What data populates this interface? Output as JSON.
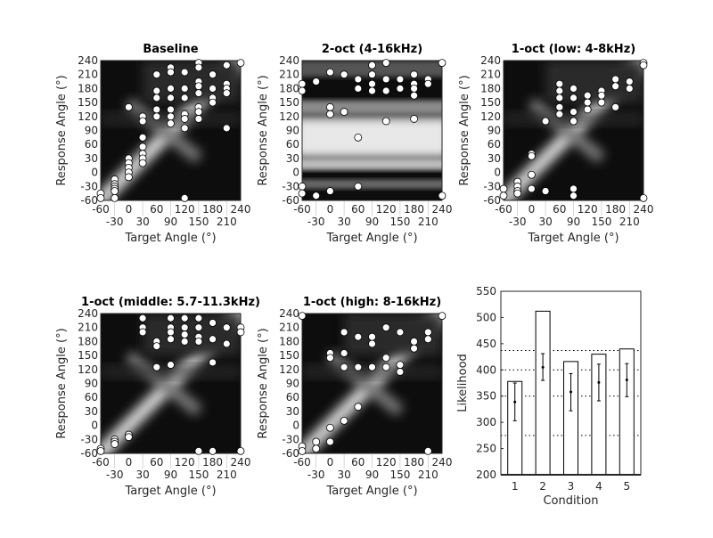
{
  "chart_data": [
    {
      "type": "heatmap",
      "title": "Baseline",
      "xlabel": "Target Angle (°)",
      "ylabel": "Response Angle (°)",
      "xlim": [
        -60,
        240
      ],
      "ylim": [
        -60,
        240
      ],
      "xticks": [
        "-60",
        "-30",
        "0",
        "30",
        "60",
        "90",
        "120",
        "150",
        "180",
        "210",
        "240"
      ],
      "yticks": [
        "-60",
        "-30",
        "0",
        "30",
        "60",
        "90",
        "120",
        "150",
        "180",
        "210",
        "240"
      ],
      "pattern": "diagonal",
      "points": [
        [
          -60,
          -45
        ],
        [
          -60,
          -55
        ],
        [
          -30,
          -15
        ],
        [
          -30,
          -25
        ],
        [
          -30,
          -30
        ],
        [
          -30,
          -35
        ],
        [
          -30,
          -40
        ],
        [
          -30,
          -55
        ],
        [
          0,
          140
        ],
        [
          0,
          30
        ],
        [
          0,
          20
        ],
        [
          0,
          10
        ],
        [
          0,
          0
        ],
        [
          0,
          -10
        ],
        [
          30,
          120
        ],
        [
          30,
          110
        ],
        [
          30,
          75
        ],
        [
          30,
          55
        ],
        [
          30,
          40
        ],
        [
          30,
          30
        ],
        [
          30,
          20
        ],
        [
          60,
          210
        ],
        [
          60,
          175
        ],
        [
          60,
          160
        ],
        [
          60,
          135
        ],
        [
          60,
          120
        ],
        [
          90,
          225
        ],
        [
          90,
          215
        ],
        [
          90,
          180
        ],
        [
          90,
          160
        ],
        [
          90,
          135
        ],
        [
          90,
          120
        ],
        [
          90,
          105
        ],
        [
          120,
          215
        ],
        [
          120,
          180
        ],
        [
          120,
          160
        ],
        [
          120,
          125
        ],
        [
          120,
          115
        ],
        [
          120,
          95
        ],
        [
          120,
          -55
        ],
        [
          150,
          235
        ],
        [
          150,
          225
        ],
        [
          150,
          195
        ],
        [
          150,
          185
        ],
        [
          150,
          170
        ],
        [
          150,
          140
        ],
        [
          150,
          130
        ],
        [
          150,
          115
        ],
        [
          180,
          210
        ],
        [
          180,
          180
        ],
        [
          180,
          160
        ],
        [
          180,
          150
        ],
        [
          210,
          230
        ],
        [
          210,
          190
        ],
        [
          210,
          180
        ],
        [
          210,
          170
        ],
        [
          210,
          95
        ],
        [
          240,
          235
        ]
      ]
    },
    {
      "type": "heatmap",
      "title": "2-oct (4-16kHz)",
      "xlabel": "Target Angle (°)",
      "ylabel": "Response Angle (°)",
      "xlim": [
        -60,
        240
      ],
      "ylim": [
        -60,
        240
      ],
      "xticks": [
        "-60",
        "-30",
        "0",
        "30",
        "60",
        "90",
        "120",
        "150",
        "180",
        "210",
        "240"
      ],
      "yticks": [
        "-60",
        "-30",
        "0",
        "30",
        "60",
        "90",
        "120",
        "150",
        "180",
        "210",
        "240"
      ],
      "pattern": "bands",
      "points": [
        [
          -60,
          190
        ],
        [
          -60,
          175
        ],
        [
          -60,
          -30
        ],
        [
          -60,
          -45
        ],
        [
          -30,
          195
        ],
        [
          -30,
          -50
        ],
        [
          0,
          215
        ],
        [
          0,
          140
        ],
        [
          0,
          125
        ],
        [
          0,
          -40
        ],
        [
          30,
          210
        ],
        [
          30,
          130
        ],
        [
          60,
          200
        ],
        [
          60,
          180
        ],
        [
          60,
          75
        ],
        [
          60,
          -30
        ],
        [
          90,
          230
        ],
        [
          90,
          210
        ],
        [
          90,
          190
        ],
        [
          90,
          175
        ],
        [
          120,
          235
        ],
        [
          120,
          200
        ],
        [
          120,
          175
        ],
        [
          120,
          110
        ],
        [
          150,
          200
        ],
        [
          150,
          180
        ],
        [
          180,
          210
        ],
        [
          180,
          190
        ],
        [
          180,
          180
        ],
        [
          180,
          165
        ],
        [
          180,
          115
        ],
        [
          210,
          200
        ],
        [
          210,
          190
        ],
        [
          240,
          235
        ],
        [
          240,
          -50
        ]
      ]
    },
    {
      "type": "heatmap",
      "title": "1-oct (low: 4-8kHz)",
      "xlabel": "Target Angle (°)",
      "ylabel": "Response Angle (°)",
      "xlim": [
        -60,
        240
      ],
      "ylim": [
        -60,
        240
      ],
      "xticks": [
        "-60",
        "-30",
        "0",
        "30",
        "60",
        "90",
        "120",
        "150",
        "180",
        "210",
        "240"
      ],
      "yticks": [
        "-60",
        "-30",
        "0",
        "30",
        "60",
        "90",
        "120",
        "150",
        "180",
        "210",
        "240"
      ],
      "pattern": "diagonal",
      "points": [
        [
          -60,
          -35
        ],
        [
          -60,
          -50
        ],
        [
          -30,
          -20
        ],
        [
          -30,
          -30
        ],
        [
          -30,
          -40
        ],
        [
          -30,
          -45
        ],
        [
          0,
          40
        ],
        [
          0,
          35
        ],
        [
          0,
          -5
        ],
        [
          0,
          -35
        ],
        [
          30,
          110
        ],
        [
          30,
          -40
        ],
        [
          60,
          190
        ],
        [
          60,
          175
        ],
        [
          60,
          160
        ],
        [
          60,
          140
        ],
        [
          60,
          125
        ],
        [
          90,
          180
        ],
        [
          90,
          160
        ],
        [
          90,
          130
        ],
        [
          90,
          110
        ],
        [
          90,
          -35
        ],
        [
          90,
          -50
        ],
        [
          120,
          165
        ],
        [
          120,
          150
        ],
        [
          120,
          135
        ],
        [
          150,
          175
        ],
        [
          150,
          165
        ],
        [
          150,
          150
        ],
        [
          180,
          200
        ],
        [
          180,
          185
        ],
        [
          180,
          140
        ],
        [
          210,
          195
        ],
        [
          210,
          180
        ],
        [
          240,
          235
        ],
        [
          240,
          230
        ],
        [
          240,
          -55
        ]
      ]
    },
    {
      "type": "heatmap",
      "title": "1-oct (middle: 5.7-11.3kHz)",
      "xlabel": "Target Angle (°)",
      "ylabel": "Response Angle (°)",
      "xlim": [
        -60,
        240
      ],
      "ylim": [
        -60,
        240
      ],
      "xticks": [
        "-60",
        "-30",
        "0",
        "30",
        "60",
        "90",
        "120",
        "150",
        "180",
        "210",
        "240"
      ],
      "yticks": [
        "-60",
        "-30",
        "0",
        "30",
        "60",
        "90",
        "120",
        "150",
        "180",
        "210",
        "240"
      ],
      "pattern": "diagonal",
      "points": [
        [
          -60,
          -50
        ],
        [
          -60,
          -55
        ],
        [
          -30,
          -30
        ],
        [
          -30,
          -35
        ],
        [
          -30,
          -40
        ],
        [
          0,
          -20
        ],
        [
          0,
          -25
        ],
        [
          30,
          230
        ],
        [
          30,
          210
        ],
        [
          30,
          200
        ],
        [
          60,
          180
        ],
        [
          60,
          170
        ],
        [
          60,
          125
        ],
        [
          90,
          230
        ],
        [
          90,
          210
        ],
        [
          90,
          200
        ],
        [
          90,
          185
        ],
        [
          90,
          130
        ],
        [
          120,
          230
        ],
        [
          120,
          210
        ],
        [
          120,
          195
        ],
        [
          120,
          180
        ],
        [
          150,
          230
        ],
        [
          150,
          210
        ],
        [
          150,
          190
        ],
        [
          150,
          180
        ],
        [
          180,
          220
        ],
        [
          180,
          185
        ],
        [
          180,
          135
        ],
        [
          180,
          -55
        ],
        [
          210,
          210
        ],
        [
          210,
          175
        ],
        [
          240,
          210
        ],
        [
          240,
          200
        ],
        [
          240,
          -55
        ],
        [
          150,
          -55
        ]
      ]
    },
    {
      "type": "heatmap",
      "title": "1-oct (high: 8-16kHz)",
      "xlabel": "Target Angle (°)",
      "ylabel": "Response Angle (°)",
      "xlim": [
        -60,
        240
      ],
      "ylim": [
        -60,
        240
      ],
      "xticks": [
        "-60",
        "-30",
        "0",
        "30",
        "60",
        "90",
        "120",
        "150",
        "180",
        "210",
        "240"
      ],
      "yticks": [
        "-60",
        "-30",
        "0",
        "30",
        "60",
        "90",
        "120",
        "150",
        "180",
        "210",
        "240"
      ],
      "pattern": "diagonal",
      "points": [
        [
          -60,
          235
        ],
        [
          -60,
          -45
        ],
        [
          -60,
          -55
        ],
        [
          -30,
          -35
        ],
        [
          -30,
          -50
        ],
        [
          0,
          155
        ],
        [
          0,
          145
        ],
        [
          0,
          -5
        ],
        [
          0,
          -35
        ],
        [
          30,
          200
        ],
        [
          30,
          155
        ],
        [
          30,
          125
        ],
        [
          30,
          10
        ],
        [
          60,
          190
        ],
        [
          60,
          125
        ],
        [
          60,
          40
        ],
        [
          90,
          190
        ],
        [
          90,
          175
        ],
        [
          90,
          125
        ],
        [
          120,
          210
        ],
        [
          120,
          145
        ],
        [
          120,
          125
        ],
        [
          150,
          200
        ],
        [
          150,
          130
        ],
        [
          150,
          115
        ],
        [
          180,
          180
        ],
        [
          180,
          165
        ],
        [
          210,
          200
        ],
        [
          210,
          185
        ],
        [
          210,
          -55
        ],
        [
          240,
          235
        ]
      ]
    },
    {
      "type": "bar",
      "title": "",
      "xlabel": "Condition",
      "ylabel": "Likelihood",
      "categories": [
        "1",
        "2",
        "3",
        "4",
        "5"
      ],
      "values": [
        378,
        512,
        416,
        430,
        440
      ],
      "means": [
        339,
        405,
        358,
        376,
        381
      ],
      "err_low": [
        303,
        380,
        322,
        341,
        349
      ],
      "err_high": [
        375,
        431,
        393,
        411,
        412
      ],
      "reference_lines": [
        275,
        350,
        400,
        437
      ],
      "ylim": [
        200,
        550
      ],
      "yticks": [
        "200",
        "250",
        "300",
        "350",
        "400",
        "450",
        "500",
        "550"
      ]
    }
  ]
}
